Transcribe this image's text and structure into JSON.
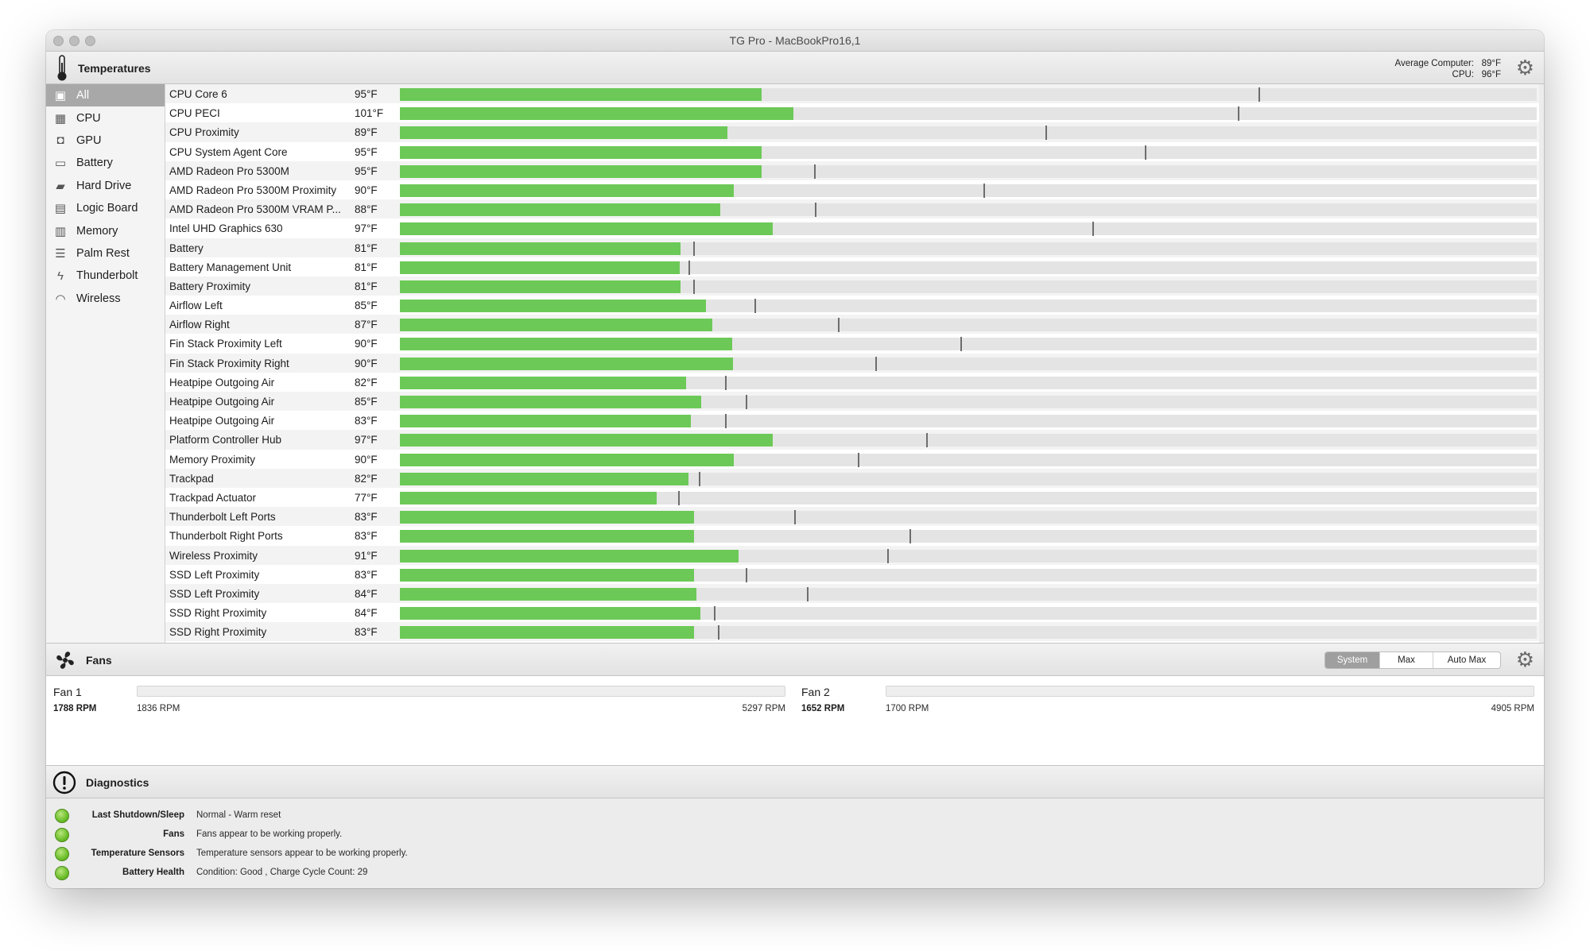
{
  "window": {
    "title": "TG Pro - MacBookPro16,1"
  },
  "temperatures_header": {
    "title": "Temperatures",
    "average_label": "Average Computer:",
    "average_value": "89°F",
    "cpu_label": "CPU:",
    "cpu_value": "96°F"
  },
  "sidebar": {
    "items": [
      {
        "label": "All",
        "icon": "monitor-icon",
        "active": true
      },
      {
        "label": "CPU",
        "icon": "cpu-icon"
      },
      {
        "label": "GPU",
        "icon": "gpu-icon"
      },
      {
        "label": "Battery",
        "icon": "battery-icon"
      },
      {
        "label": "Hard Drive",
        "icon": "hard-drive-icon"
      },
      {
        "label": "Logic Board",
        "icon": "logic-board-icon"
      },
      {
        "label": "Memory",
        "icon": "memory-icon"
      },
      {
        "label": "Palm Rest",
        "icon": "palm-rest-icon"
      },
      {
        "label": "Thunderbolt",
        "icon": "thunderbolt-icon"
      },
      {
        "label": "Wireless",
        "icon": "wireless-icon"
      }
    ]
  },
  "sensors": [
    {
      "name": "CPU Core 6",
      "temp": "95°F",
      "level": 0.318,
      "max_marker": 0.755
    },
    {
      "name": "CPU PECI",
      "temp": "101°F",
      "level": 0.346,
      "max_marker": 0.737
    },
    {
      "name": "CPU Proximity",
      "temp": "89°F",
      "level": 0.288,
      "max_marker": 0.568
    },
    {
      "name": "CPU System Agent Core",
      "temp": "95°F",
      "level": 0.318,
      "max_marker": 0.655
    },
    {
      "name": "AMD Radeon Pro 5300M",
      "temp": "95°F",
      "level": 0.318,
      "max_marker": 0.364
    },
    {
      "name": "AMD Radeon Pro 5300M Proximity",
      "temp": "90°F",
      "level": 0.294,
      "max_marker": 0.513
    },
    {
      "name": "AMD Radeon Pro 5300M VRAM P...",
      "temp": "88°F",
      "level": 0.282,
      "max_marker": 0.365
    },
    {
      "name": "Intel UHD Graphics 630",
      "temp": "97°F",
      "level": 0.328,
      "max_marker": 0.609
    },
    {
      "name": "Battery",
      "temp": "81°F",
      "level": 0.247,
      "max_marker": 0.258
    },
    {
      "name": "Battery Management Unit",
      "temp": "81°F",
      "level": 0.246,
      "max_marker": 0.254
    },
    {
      "name": "Battery Proximity",
      "temp": "81°F",
      "level": 0.247,
      "max_marker": 0.258
    },
    {
      "name": "Airflow Left",
      "temp": "85°F",
      "level": 0.269,
      "max_marker": 0.312
    },
    {
      "name": "Airflow Right",
      "temp": "87°F",
      "level": 0.275,
      "max_marker": 0.385
    },
    {
      "name": "Fin Stack Proximity Left",
      "temp": "90°F",
      "level": 0.292,
      "max_marker": 0.493
    },
    {
      "name": "Fin Stack Proximity Right",
      "temp": "90°F",
      "level": 0.293,
      "max_marker": 0.418
    },
    {
      "name": "Heatpipe Outgoing Air",
      "temp": "82°F",
      "level": 0.252,
      "max_marker": 0.286
    },
    {
      "name": "Heatpipe Outgoing Air",
      "temp": "85°F",
      "level": 0.265,
      "max_marker": 0.304
    },
    {
      "name": "Heatpipe Outgoing Air",
      "temp": "83°F",
      "level": 0.256,
      "max_marker": 0.286
    },
    {
      "name": "Platform Controller Hub",
      "temp": "97°F",
      "level": 0.328,
      "max_marker": 0.463
    },
    {
      "name": "Memory Proximity",
      "temp": "90°F",
      "level": 0.294,
      "max_marker": 0.403
    },
    {
      "name": "Trackpad",
      "temp": "82°F",
      "level": 0.254,
      "max_marker": 0.263
    },
    {
      "name": "Trackpad Actuator",
      "temp": "77°F",
      "level": 0.226,
      "max_marker": 0.245
    },
    {
      "name": "Thunderbolt Left Ports",
      "temp": "83°F",
      "level": 0.259,
      "max_marker": 0.347
    },
    {
      "name": "Thunderbolt Right Ports",
      "temp": "83°F",
      "level": 0.259,
      "max_marker": 0.448
    },
    {
      "name": "Wireless Proximity",
      "temp": "91°F",
      "level": 0.298,
      "max_marker": 0.429
    },
    {
      "name": "SSD Left Proximity",
      "temp": "83°F",
      "level": 0.259,
      "max_marker": 0.304
    },
    {
      "name": "SSD Left Proximity",
      "temp": "84°F",
      "level": 0.261,
      "max_marker": 0.358
    },
    {
      "name": "SSD Right Proximity",
      "temp": "84°F",
      "level": 0.264,
      "max_marker": 0.276
    },
    {
      "name": "SSD Right Proximity",
      "temp": "83°F",
      "level": 0.259,
      "max_marker": 0.28
    }
  ],
  "fans_header": {
    "title": "Fans",
    "modes": [
      "System",
      "Max",
      "Auto Max"
    ],
    "selected_mode": "System"
  },
  "fans": [
    {
      "name": "Fan 1",
      "current": "1788 RPM",
      "min": "1836 RPM",
      "max": "5297 RPM"
    },
    {
      "name": "Fan 2",
      "current": "1652 RPM",
      "min": "1700 RPM",
      "max": "4905 RPM"
    }
  ],
  "diagnostics": {
    "title": "Diagnostics",
    "rows": [
      {
        "label": "Last Shutdown/Sleep",
        "value": "Normal - Warm reset",
        "status": "good"
      },
      {
        "label": "Fans",
        "value": "Fans appear to be working properly.",
        "status": "good"
      },
      {
        "label": "Temperature Sensors",
        "value": "Temperature sensors appear to be working properly.",
        "status": "good"
      },
      {
        "label": "Battery Health",
        "value": "Condition: Good , Charge Cycle Count: 29",
        "status": "good"
      }
    ]
  },
  "colors": {
    "bar_fill": "#6cc957",
    "bar_track": "#e4e4e4",
    "marker": "#6d6d6d",
    "status_good": "#6cbf2a",
    "sidebar_selected": "#a8a8a8"
  }
}
